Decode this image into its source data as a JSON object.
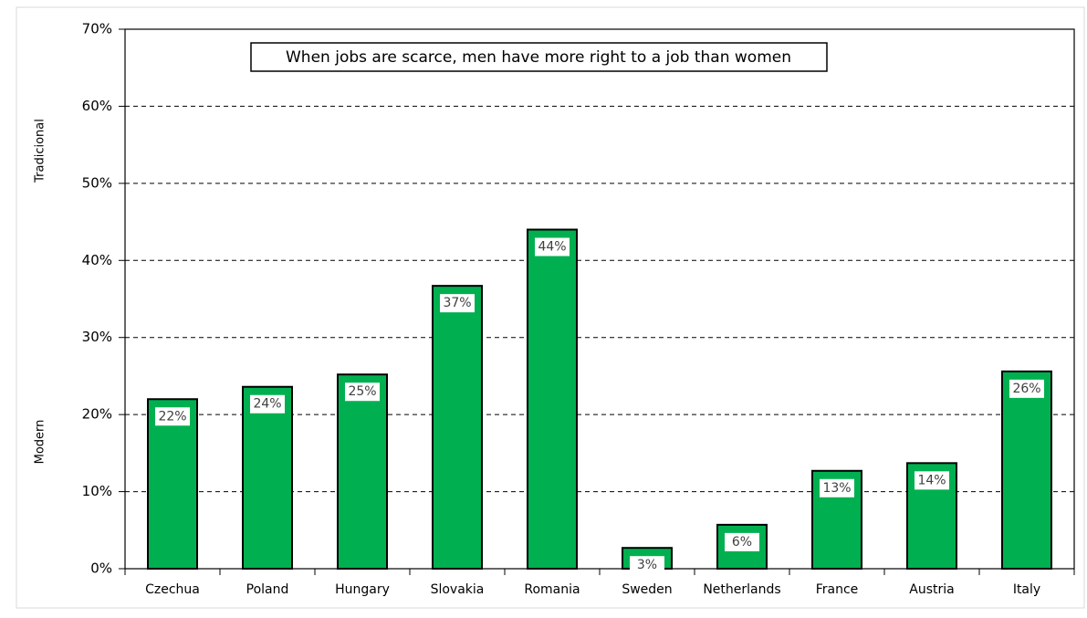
{
  "chart_data": {
    "type": "bar",
    "title": "When jobs are scarce, men have more right to a job than women",
    "side_labels": [
      "Tradicional",
      "Modern"
    ],
    "categories": [
      "Czechua",
      "Poland",
      "Hungary",
      "Slovakia",
      "Romania",
      "Sweden",
      "Netherlands",
      "France",
      "Austria",
      "Italy"
    ],
    "values": [
      22.0,
      23.6,
      25.2,
      36.7,
      44.0,
      2.7,
      5.7,
      12.7,
      13.7,
      25.6
    ],
    "value_labels": [
      "22%",
      "24%",
      "25%",
      "37%",
      "44%",
      "3%",
      "6%",
      "13%",
      "14%",
      "26%"
    ],
    "color": "#00b050",
    "ylim": [
      0,
      70
    ],
    "yticks": [
      {
        "value": 0,
        "label": "0%"
      },
      {
        "value": 10,
        "label": "10%"
      },
      {
        "value": 20,
        "label": "20%"
      },
      {
        "value": 30,
        "label": "30%"
      },
      {
        "value": 40,
        "label": "40%"
      },
      {
        "value": 50,
        "label": "50%"
      },
      {
        "value": 60,
        "label": "60%"
      },
      {
        "value": 70,
        "label": "70%"
      }
    ],
    "grid": true
  }
}
